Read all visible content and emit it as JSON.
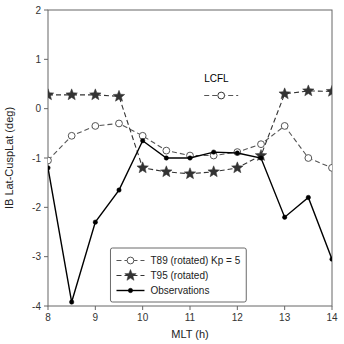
{
  "chart_data": {
    "type": "line",
    "xlabel": "MLT (h)",
    "ylabel": "IB Lat-CuspLat (deg)",
    "x": [
      8.0,
      8.5,
      9.0,
      9.5,
      10.0,
      10.5,
      11.0,
      11.5,
      12.0,
      12.5,
      13.0,
      13.5,
      14.0
    ],
    "series": [
      {
        "name": "T89 (rotated) Kp = 5",
        "color": "#555555",
        "marker": "circle",
        "line_style": "dashed",
        "values": [
          -1.05,
          -0.55,
          -0.35,
          -0.3,
          -0.55,
          -0.85,
          -0.95,
          -0.95,
          -0.88,
          -0.72,
          -0.35,
          -1.0,
          -1.2
        ]
      },
      {
        "name": "T95 (rotated)",
        "color": "#333333",
        "marker": "star",
        "line_style": "dashed",
        "values": [
          0.28,
          0.28,
          0.28,
          0.25,
          -1.2,
          -1.28,
          -1.32,
          -1.28,
          -1.2,
          -0.95,
          0.3,
          0.36,
          0.35
        ]
      },
      {
        "name": "Observations",
        "color": "#000000",
        "marker": "dot",
        "line_style": "solid",
        "values": [
          -1.2,
          -3.92,
          -2.3,
          -1.65,
          -0.65,
          -1.0,
          -1.0,
          -0.88,
          -0.9,
          -1.0,
          -2.2,
          -1.8,
          -3.05
        ]
      }
    ],
    "annotations": [
      {
        "text": "LCFL",
        "x": 11.3,
        "y": 0.55,
        "marker": "circle",
        "line_style": "dashed"
      }
    ],
    "xlim": [
      8,
      14
    ],
    "ylim": [
      -4,
      2
    ],
    "xticks": [
      8,
      9,
      10,
      11,
      12,
      13,
      14
    ],
    "yticks": [
      -4,
      -3,
      -2,
      -1,
      0,
      1,
      2
    ],
    "grid": false,
    "legend": "lower left"
  }
}
